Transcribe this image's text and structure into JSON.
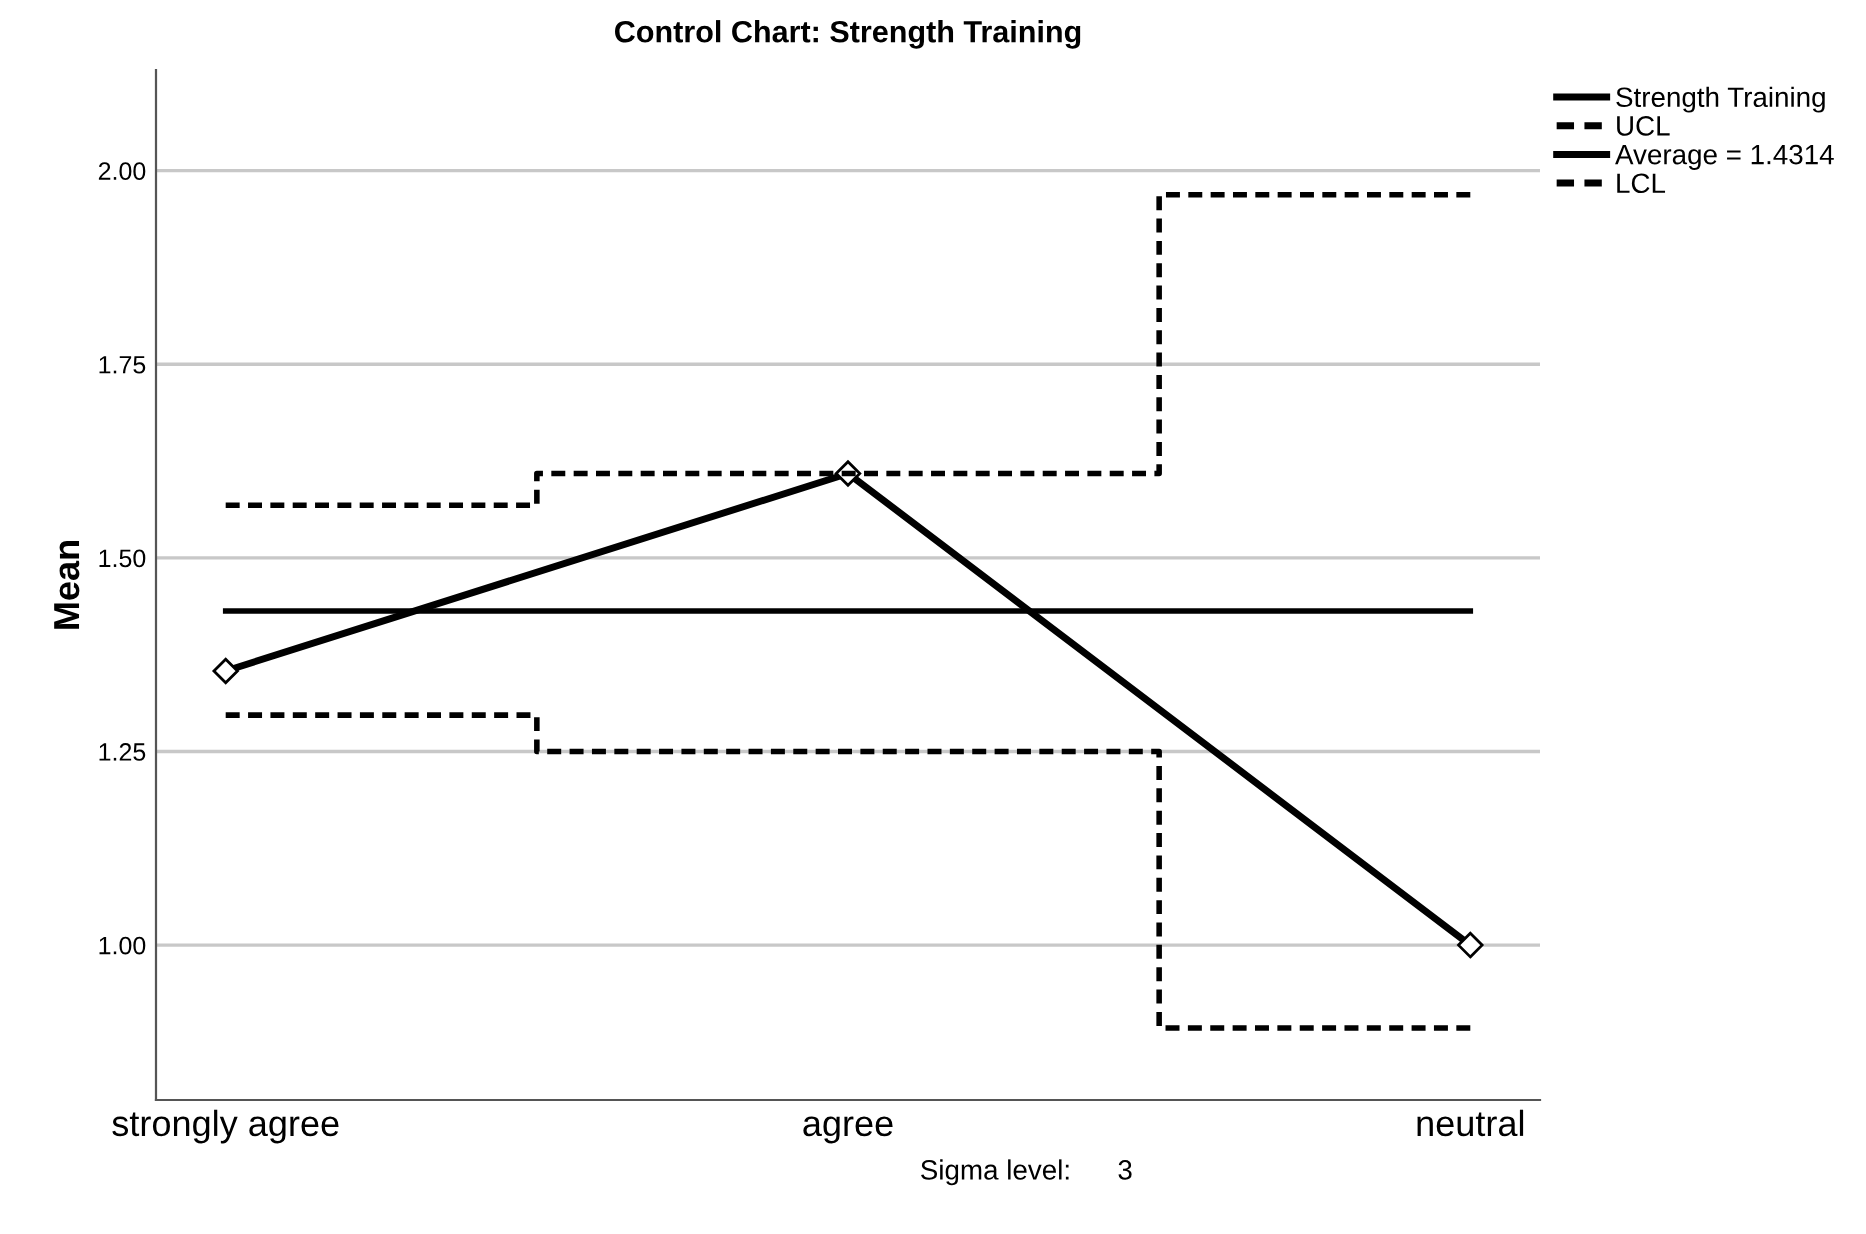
{
  "chart_data": {
    "type": "line",
    "title": "Control Chart: Strength Training",
    "ylabel": "Mean",
    "categories": [
      "strongly agree",
      "agree",
      "neutral"
    ],
    "series": [
      {
        "name": "Strength Training",
        "color": "#000000",
        "values": [
          1.354,
          1.609,
          1.0
        ],
        "marker": "diamond",
        "line_style": "solid"
      },
      {
        "name": "UCL",
        "type": "step",
        "color": "#000000",
        "values": [
          1.568,
          1.609,
          1.969
        ],
        "marker": "none",
        "line_style": "dashed"
      },
      {
        "name": "Average = 1.4314",
        "color": "#000000",
        "values": [
          1.4314,
          1.4314,
          1.4314
        ],
        "marker": "none",
        "line_style": "solid"
      },
      {
        "name": "LCL",
        "type": "step",
        "color": "#000000",
        "values": [
          1.297,
          1.25,
          0.893
        ],
        "marker": "none",
        "line_style": "dashed"
      }
    ],
    "ylim": [
      0.8,
      2.13
    ],
    "yticks": [
      {
        "value": 1.0,
        "label": "1.00"
      },
      {
        "value": 1.25,
        "label": "1.25"
      },
      {
        "value": 1.5,
        "label": "1.50"
      },
      {
        "value": 1.75,
        "label": "1.75"
      },
      {
        "value": 2.0,
        "label": "2.00"
      }
    ],
    "grid": "y",
    "legend": "top right",
    "annotations": [
      "Sigma level:      3"
    ]
  }
}
